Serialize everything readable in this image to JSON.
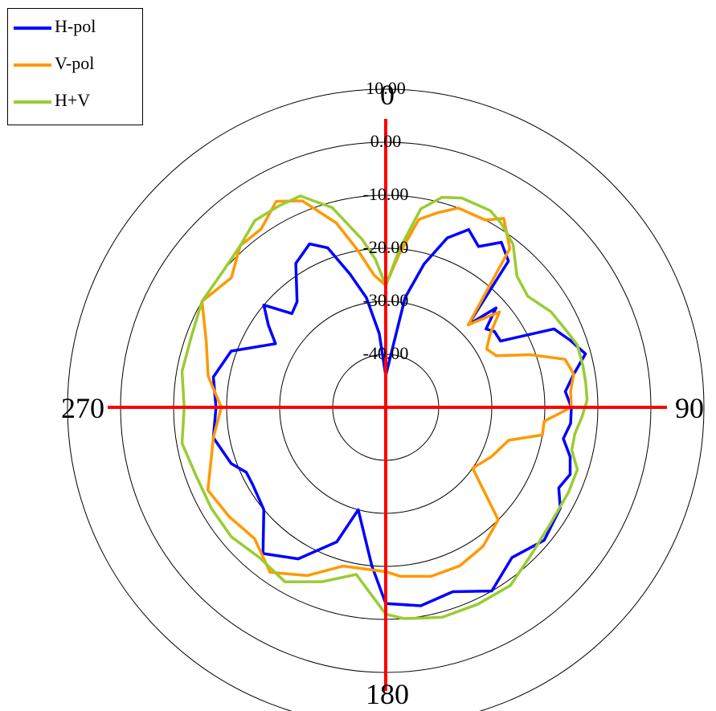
{
  "chart_data": {
    "type": "polar",
    "angle_labels": {
      "top": "0",
      "right": "90",
      "bottom": "180",
      "left": "270"
    },
    "radial_range": [
      -50,
      20
    ],
    "radial_ticks": [
      {
        "value": 10,
        "label": "10.00"
      },
      {
        "value": 0,
        "label": "0.00"
      },
      {
        "value": -10,
        "label": "-10.00"
      },
      {
        "value": -20,
        "label": "-20.00"
      },
      {
        "value": -30,
        "label": "-30.00"
      },
      {
        "value": -40,
        "label": "-40.00"
      }
    ],
    "legend_position": "top-left",
    "grid": true,
    "colors": {
      "grid": "#000000",
      "axis": "#ff0000"
    },
    "series": [
      {
        "name": "H-pol",
        "color": "#0000ff",
        "points": [
          [
            0,
            -44
          ],
          [
            10,
            -29
          ],
          [
            15,
            -22
          ],
          [
            20,
            -16
          ],
          [
            25,
            -13
          ],
          [
            30,
            -15
          ],
          [
            35,
            -12
          ],
          [
            40,
            -14
          ],
          [
            45,
            -28
          ],
          [
            48,
            -22
          ],
          [
            52,
            -26
          ],
          [
            55,
            -25
          ],
          [
            60,
            -25
          ],
          [
            65,
            -15
          ],
          [
            70,
            -13
          ],
          [
            75,
            -11
          ],
          [
            80,
            -14
          ],
          [
            85,
            -16
          ],
          [
            90,
            -15
          ],
          [
            95,
            -15
          ],
          [
            100,
            -16
          ],
          [
            105,
            -14
          ],
          [
            110,
            -13
          ],
          [
            115,
            -14
          ],
          [
            120,
            -12
          ],
          [
            130,
            -11
          ],
          [
            140,
            -13
          ],
          [
            150,
            -10
          ],
          [
            160,
            -13
          ],
          [
            170,
            -12
          ],
          [
            180,
            -13
          ],
          [
            185,
            -20
          ],
          [
            195,
            -30
          ],
          [
            200,
            -23
          ],
          [
            210,
            -17
          ],
          [
            220,
            -14
          ],
          [
            230,
            -20
          ],
          [
            240,
            -21
          ],
          [
            245,
            -21
          ],
          [
            250,
            -19
          ],
          [
            260,
            -17
          ],
          [
            270,
            -18
          ],
          [
            280,
            -17
          ],
          [
            290,
            -19
          ],
          [
            300,
            -26
          ],
          [
            305,
            -23
          ],
          [
            310,
            -20
          ],
          [
            315,
            -25
          ],
          [
            320,
            -24
          ],
          [
            328,
            -18
          ],
          [
            335,
            -16
          ],
          [
            340,
            -18
          ],
          [
            345,
            -24
          ],
          [
            350,
            -29
          ],
          [
            355,
            -36
          ],
          [
            360,
            -44
          ]
        ]
      },
      {
        "name": "V-pol",
        "color": "#ff9900",
        "points": [
          [
            0,
            -27
          ],
          [
            5,
            -21
          ],
          [
            10,
            -14
          ],
          [
            15,
            -12
          ],
          [
            20,
            -10
          ],
          [
            28,
            -10
          ],
          [
            32,
            -8
          ],
          [
            38,
            -12
          ],
          [
            45,
            -28
          ],
          [
            50,
            -22
          ],
          [
            55,
            -26
          ],
          [
            60,
            -28
          ],
          [
            65,
            -27
          ],
          [
            70,
            -21
          ],
          [
            75,
            -15
          ],
          [
            80,
            -14
          ],
          [
            85,
            -15
          ],
          [
            90,
            -15
          ],
          [
            95,
            -20
          ],
          [
            100,
            -20
          ],
          [
            105,
            -26
          ],
          [
            115,
            -28
          ],
          [
            125,
            -30
          ],
          [
            135,
            -20
          ],
          [
            145,
            -18
          ],
          [
            155,
            -17
          ],
          [
            165,
            -17
          ],
          [
            175,
            -18
          ],
          [
            180,
            -19
          ],
          [
            195,
            -19
          ],
          [
            205,
            -15
          ],
          [
            215,
            -12
          ],
          [
            225,
            -15
          ],
          [
            235,
            -14
          ],
          [
            245,
            -13
          ],
          [
            260,
            -17
          ],
          [
            270,
            -19
          ],
          [
            280,
            -16
          ],
          [
            290,
            -14
          ],
          [
            300,
            -10
          ],
          [
            310,
            -12
          ],
          [
            318,
            -9
          ],
          [
            325,
            -9
          ],
          [
            332,
            -6
          ],
          [
            338,
            -8
          ],
          [
            345,
            -14
          ],
          [
            350,
            -20
          ],
          [
            355,
            -25
          ],
          [
            360,
            -27
          ]
        ]
      },
      {
        "name": "H+V",
        "color": "#99cc33",
        "points": [
          [
            0,
            -27
          ],
          [
            5,
            -20
          ],
          [
            10,
            -12
          ],
          [
            15,
            -9
          ],
          [
            20,
            -8
          ],
          [
            28,
            -8
          ],
          [
            32,
            -9
          ],
          [
            38,
            -11
          ],
          [
            45,
            -15
          ],
          [
            52,
            -16
          ],
          [
            60,
            -14
          ],
          [
            67,
            -13
          ],
          [
            72,
            -12
          ],
          [
            78,
            -12
          ],
          [
            83,
            -12
          ],
          [
            88,
            -12
          ],
          [
            93,
            -13
          ],
          [
            98,
            -14
          ],
          [
            103,
            -14
          ],
          [
            108,
            -12
          ],
          [
            115,
            -12
          ],
          [
            125,
            -12
          ],
          [
            135,
            -11
          ],
          [
            145,
            -9
          ],
          [
            155,
            -9
          ],
          [
            165,
            -9
          ],
          [
            175,
            -10
          ],
          [
            180,
            -11
          ],
          [
            190,
            -18
          ],
          [
            200,
            -15
          ],
          [
            210,
            -12
          ],
          [
            220,
            -13
          ],
          [
            230,
            -12
          ],
          [
            240,
            -12
          ],
          [
            250,
            -12
          ],
          [
            260,
            -11
          ],
          [
            270,
            -12
          ],
          [
            280,
            -11
          ],
          [
            290,
            -11
          ],
          [
            300,
            -10
          ],
          [
            310,
            -10
          ],
          [
            318,
            -9
          ],
          [
            325,
            -7
          ],
          [
            332,
            -7
          ],
          [
            338,
            -7
          ],
          [
            345,
            -11
          ],
          [
            352,
            -18
          ],
          [
            356,
            -22
          ],
          [
            360,
            -27
          ]
        ]
      }
    ]
  }
}
